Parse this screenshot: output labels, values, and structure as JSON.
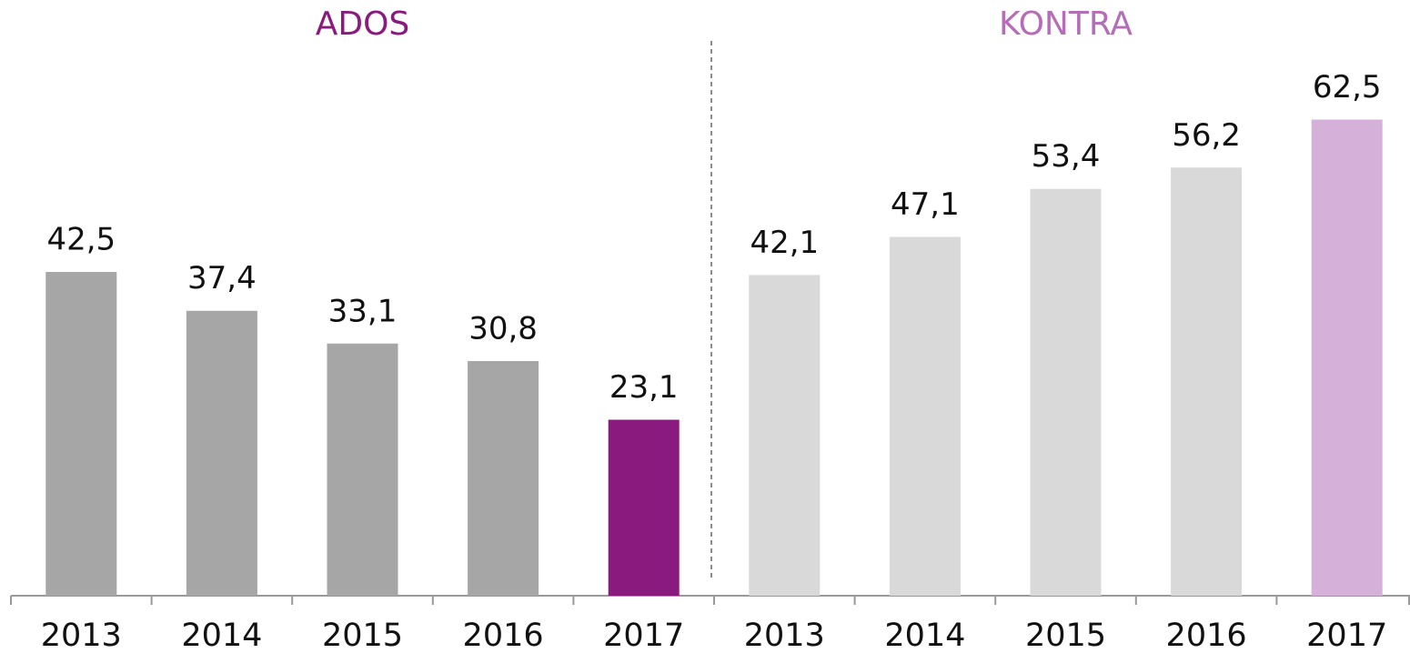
{
  "chart_data": [
    {
      "type": "bar",
      "title": "ADOS",
      "title_color": "#8b1a7e",
      "categories": [
        "2013",
        "2014",
        "2015",
        "2016",
        "2017"
      ],
      "values": [
        42.5,
        37.4,
        33.1,
        30.8,
        23.1
      ],
      "value_labels": [
        "42,5",
        "37,4",
        "33,1",
        "30,8",
        "23,1"
      ],
      "colors": [
        "#a6a6a6",
        "#a6a6a6",
        "#a6a6a6",
        "#a6a6a6",
        "#8b1a7e"
      ]
    },
    {
      "type": "bar",
      "title": "KONTRA",
      "title_color": "#b56db8",
      "categories": [
        "2013",
        "2014",
        "2015",
        "2016",
        "2017"
      ],
      "values": [
        42.1,
        47.1,
        53.4,
        56.2,
        62.5
      ],
      "value_labels": [
        "42,1",
        "47,1",
        "53,4",
        "56,2",
        "62,5"
      ],
      "colors": [
        "#d9d9d9",
        "#d9d9d9",
        "#d9d9d9",
        "#d9d9d9",
        "#d5b0d9"
      ]
    }
  ]
}
